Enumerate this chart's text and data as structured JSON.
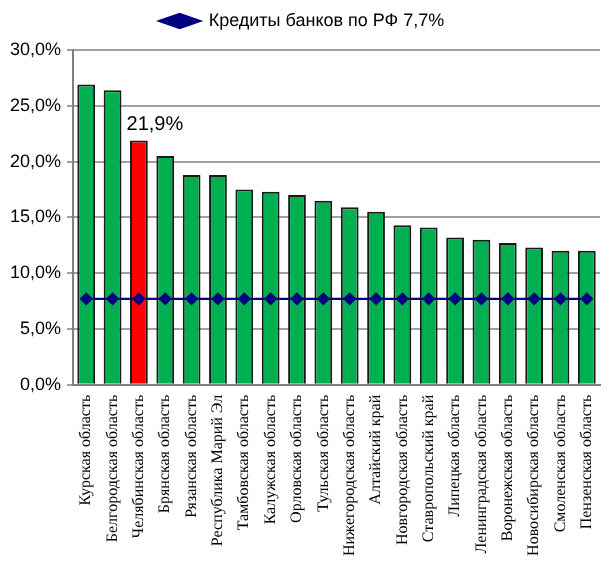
{
  "chart_data": {
    "type": "bar",
    "categories": [
      "Курская область",
      "Белгородская область",
      "Челябинская область",
      "Брянская область",
      "Рязанская область",
      "Республика Марий Эл",
      "Тамбовская область",
      "Калужская область",
      "Орловская область",
      "Тульская область",
      "Нижегородская область",
      "Алтайский край",
      "Новгородская область",
      "Ставропольский край",
      "Липецкая область",
      "Ленинградская область",
      "Воронежская область",
      "Новосибирская область",
      "Смоленская область",
      "Пензенская область"
    ],
    "series": [
      {
        "colors": [
          "#00b050",
          "#00b050",
          "#ff0000",
          "#00b050",
          "#00b050",
          "#00b050",
          "#00b050",
          "#00b050",
          "#00b050",
          "#00b050",
          "#00b050",
          "#00b050",
          "#00b050",
          "#00b050",
          "#00b050",
          "#00b050",
          "#00b050",
          "#00b050",
          "#00b050",
          "#00b050"
        ],
        "values": [
          26.9,
          26.4,
          21.9,
          20.5,
          18.8,
          18.8,
          17.5,
          17.3,
          17.0,
          16.5,
          15.9,
          15.5,
          14.3,
          14.1,
          13.2,
          13.0,
          12.7,
          12.3,
          12.0,
          12.0
        ],
        "value_labels": [
          null,
          null,
          "21,9%",
          null,
          null,
          null,
          null,
          null,
          null,
          null,
          null,
          null,
          null,
          null,
          null,
          null,
          null,
          null,
          null,
          null
        ]
      },
      {
        "type": "line",
        "name": "Кредиты банков по РФ 7,7%",
        "color": "#000080",
        "values": [
          7.7,
          7.7,
          7.7,
          7.7,
          7.7,
          7.7,
          7.7,
          7.7,
          7.7,
          7.7,
          7.7,
          7.7,
          7.7,
          7.7,
          7.7,
          7.7,
          7.7,
          7.7,
          7.7,
          7.7
        ]
      }
    ],
    "ylim": [
      0,
      30
    ],
    "yticks": [
      {
        "value": 0,
        "label": "0,0%"
      },
      {
        "value": 5,
        "label": "5,0%"
      },
      {
        "value": 10,
        "label": "10,0%"
      },
      {
        "value": 15,
        "label": "15,0%"
      },
      {
        "value": 20,
        "label": "20,0%"
      },
      {
        "value": 25,
        "label": "25,0%"
      },
      {
        "value": 30,
        "label": "30,0%"
      }
    ],
    "grid": "y",
    "legend": "top",
    "marker": "diamond",
    "line_style": "solid"
  }
}
